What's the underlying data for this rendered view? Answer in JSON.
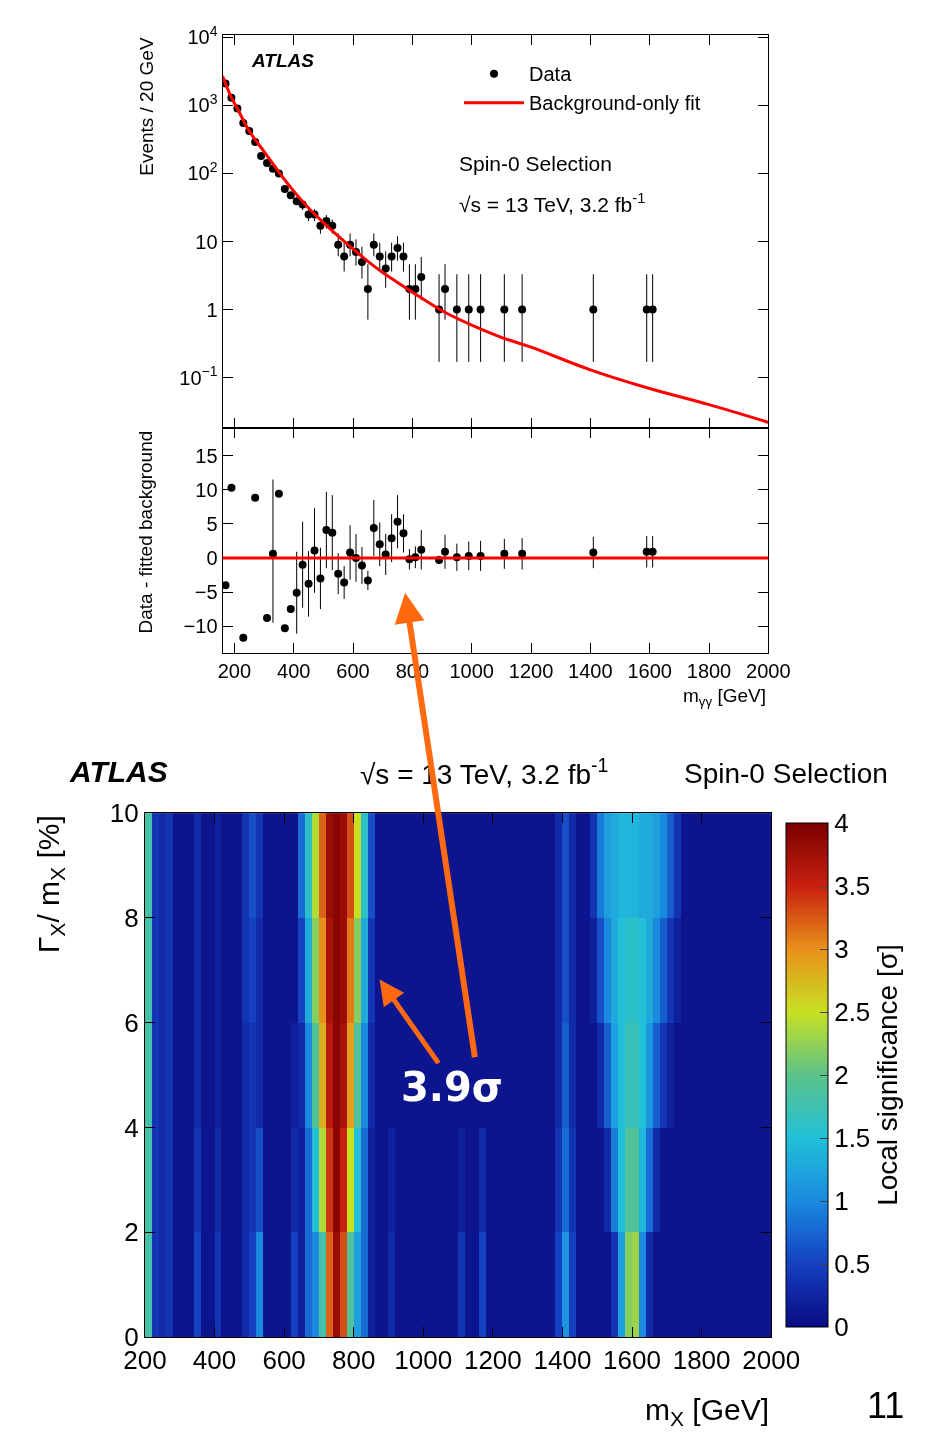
{
  "chart_data": [
    {
      "type": "scatter",
      "ylabel": "Events / 20 GeV",
      "xlim": [
        160,
        2000
      ],
      "xticks": [
        200,
        400,
        600,
        800,
        1000,
        1200,
        1400,
        1600,
        1800,
        2000
      ],
      "tick_labels": "y",
      "ylim": [
        0.018,
        11000
      ],
      "yticks": [
        {
          "value": 0.1,
          "label": "10$^{−1}$"
        },
        1,
        10,
        {
          "value": 100,
          "label": "10$^{2}$"
        },
        {
          "value": 1000,
          "label": "10$^{3}$"
        },
        {
          "value": 10000,
          "label": "10$^{4}$"
        }
      ],
      "log": "y",
      "legend": "top right",
      "x": [
        170,
        190,
        210,
        230,
        250,
        270,
        290,
        310,
        330,
        350,
        370,
        390,
        410,
        430,
        450,
        470,
        490,
        510,
        530,
        550,
        570,
        590,
        610,
        630,
        650,
        670,
        690,
        710,
        730,
        750,
        770,
        790,
        810,
        830,
        890,
        910,
        950,
        990,
        1030,
        1110,
        1170,
        1410,
        1590,
        1610
      ],
      "series": [
        {
          "name": "Data",
          "type": "scatter",
          "marker": "circle",
          "color": "#000000",
          "values": [
            2100,
            1300,
            900,
            550,
            420,
            290,
            180,
            142,
            117,
            100,
            59,
            48,
            39,
            35,
            25,
            25,
            17,
            20,
            17,
            9,
            6,
            9,
            7,
            5,
            2,
            9,
            6,
            4,
            6,
            8,
            6,
            2,
            2,
            3,
            1,
            2,
            1,
            1,
            1,
            1,
            1,
            1,
            1,
            1
          ],
          "errors": [
            null,
            null,
            null,
            null,
            null,
            null,
            null,
            null,
            null,
            null,
            null,
            null,
            null,
            6,
            5,
            5,
            4,
            4.5,
            4,
            [
              6.06,
              13.11
            ],
            [
              3.62,
              9.58
            ],
            [
              6.06,
              13.11
            ],
            [
              4.42,
              10.77
            ],
            [
              2.84,
              8.38
            ],
            [
              0.71,
              4.64
            ],
            [
              6.06,
              13.11
            ],
            [
              3.62,
              9.58
            ],
            [
              2.09,
              7.16
            ],
            [
              3.62,
              9.58
            ],
            [
              5.23,
              11.95
            ],
            [
              3.62,
              9.58
            ],
            [
              0.71,
              4.64
            ],
            [
              0.71,
              4.64
            ],
            [
              1.37,
              5.92
            ],
            [
              0.17,
              3.3
            ],
            [
              0.71,
              4.64
            ],
            [
              0.17,
              3.3
            ],
            [
              0.17,
              3.3
            ],
            [
              0.17,
              3.3
            ],
            [
              0.17,
              3.3
            ],
            [
              0.17,
              3.3
            ],
            [
              0.17,
              3.3
            ],
            [
              0.17,
              3.3
            ],
            [
              0.17,
              3.3
            ]
          ]
        },
        {
          "name": "Background-only fit",
          "type": "line",
          "color": "#ff0000",
          "line_style": "solid",
          "x": [
            160,
            190,
            210,
            250,
            300,
            350,
            400,
            450,
            500,
            550,
            600,
            650,
            700,
            750,
            800,
            900,
            1000,
            1100,
            1200,
            1400,
            1600,
            1800,
            2000
          ],
          "values": [
            2700,
            1300,
            900,
            420,
            210,
            105,
            55,
            31,
            19,
            12,
            7.8,
            5.1,
            3.5,
            2.5,
            1.8,
            0.96,
            0.59,
            0.39,
            0.28,
            0.13,
            0.069,
            0.04,
            0.022
          ]
        }
      ],
      "annotations": [
        "ATLAS",
        "Spin-0 Selection",
        "√s = 13 TeV, 3.2 fb$^{-1}$"
      ]
    },
    {
      "type": "scatter",
      "ylabel": "Data - fitted background",
      "xlabel": "m$_{γγ}$ [GeV]",
      "xlim": [
        160,
        2000
      ],
      "xticks": [
        200,
        400,
        600,
        800,
        1000,
        1200,
        1400,
        1600,
        1800,
        2000
      ],
      "ylim": [
        -14,
        19
      ],
      "yticks": [
        {
          "value": -10,
          "label": "−10"
        },
        {
          "value": -5,
          "label": "−5"
        },
        0,
        5,
        10,
        15
      ],
      "marker": "circle",
      "legend": false,
      "x": [
        170,
        190,
        230,
        270,
        310,
        330,
        350,
        370,
        390,
        410,
        430,
        450,
        470,
        490,
        510,
        530,
        550,
        570,
        590,
        610,
        630,
        650,
        670,
        690,
        710,
        730,
        750,
        770,
        790,
        810,
        830,
        890,
        910,
        950,
        990,
        1030,
        1110,
        1170,
        1410,
        1590,
        1610
      ],
      "series": [
        {
          "type": "scatter",
          "color": "#000000",
          "values": [
            -4,
            10.3,
            -11.7,
            8.8,
            -8.8,
            0.6,
            9.4,
            -10.3,
            -7.5,
            -5.1,
            -1,
            -3.8,
            1.1,
            -3,
            4.1,
            3.7,
            -2.3,
            -3.6,
            0.8,
            0,
            -1.1,
            -3.3,
            4.4,
            2,
            0.5,
            2.9,
            5.3,
            3.6,
            -0.2,
            0.1,
            1.2,
            -0.3,
            0.9,
            0.1,
            0.3,
            0.3,
            0.6,
            0.6,
            0.8,
            0.9,
            0.9
          ],
          "errors": [
            null,
            null,
            null,
            null,
            null,
            [
              -9.5,
              11.5
            ],
            null,
            null,
            null,
            6,
            6.3,
            4.8,
            6.2,
            4.5,
            5.6,
            5.5,
            3,
            2.4,
            4,
            3.5,
            2.7,
            1.4,
            4.1,
            3.2,
            3,
            3.5,
            3.9,
            2.8,
            1.5,
            1.6,
            2.9,
            0.6,
            2.5,
            2,
            2.1,
            2.2,
            2.2,
            2.3,
            2.3,
            2.3,
            2.3
          ]
        }
      ],
      "ref_lines": [
        {
          "axis": "y",
          "value": 0,
          "color": "#ff0000"
        }
      ]
    },
    {
      "type": "heatmap",
      "xlabel": "m$_{X}$ [GeV]",
      "ylabel": "Γ$_{X}$/ m$_{X}$ [%]",
      "clabel": "Local significance [σ]",
      "xlim": [
        200,
        2000
      ],
      "xticks": [
        200,
        400,
        600,
        800,
        1000,
        1200,
        1400,
        1600,
        1800,
        2000
      ],
      "ylim": [
        0,
        10
      ],
      "yticks": [
        0,
        2,
        4,
        6,
        8,
        10
      ],
      "clim": [
        0,
        4
      ],
      "cticks": [
        0,
        0.5,
        1,
        1.5,
        2,
        2.5,
        3,
        3.5,
        4
      ],
      "x": [
        210,
        230,
        250,
        270,
        290,
        310,
        330,
        350,
        370,
        390,
        410,
        430,
        450,
        470,
        490,
        510,
        530,
        550,
        570,
        590,
        610,
        630,
        650,
        670,
        690,
        710,
        730,
        750,
        770,
        790,
        810,
        830,
        850,
        870,
        890,
        910,
        930,
        950,
        970,
        990,
        1010,
        1030,
        1050,
        1070,
        1090,
        1110,
        1130,
        1150,
        1170,
        1190,
        1210,
        1230,
        1250,
        1270,
        1290,
        1310,
        1330,
        1350,
        1370,
        1390,
        1410,
        1430,
        1450,
        1470,
        1490,
        1510,
        1530,
        1550,
        1570,
        1590,
        1610,
        1630,
        1650,
        1670,
        1690,
        1710,
        1730,
        1750,
        1770,
        1790,
        1810,
        1830,
        1850,
        1870,
        1890,
        1910,
        1930,
        1950,
        1970,
        1990
      ],
      "y": [
        9,
        7,
        5,
        3,
        1
      ],
      "cells": [
        [
          1.8,
          0.4,
          0.3,
          0.4,
          0.1,
          0.1,
          0.1,
          0.3,
          0.1,
          0.1,
          0.2,
          0.1,
          0.1,
          0.1,
          0.4,
          0.6,
          0.4,
          0.1,
          0.1,
          0.1,
          0.1,
          0.1,
          0.8,
          1.6,
          2.4,
          3.2,
          3.8,
          3.9,
          3.8,
          3.3,
          2.5,
          1.6,
          0.6,
          0.1,
          0.1,
          0.1,
          0.1,
          0.1,
          0.1,
          0.1,
          0.1,
          0.1,
          0.1,
          0.1,
          0.1,
          0.1,
          0.1,
          0.1,
          0.1,
          0.1,
          0.1,
          0.1,
          0.1,
          0.1,
          0.1,
          0.1,
          0.1,
          0.1,
          0.1,
          0.3,
          0.6,
          0.3,
          0.1,
          0.1,
          0.4,
          0.9,
          1.2,
          1.3,
          1.4,
          1.4,
          1.4,
          1.3,
          1.3,
          1.2,
          1.0,
          0.7,
          0.4,
          0.1,
          0.1,
          0.1,
          0.1,
          0.1,
          0.1,
          0.1,
          0.1,
          0.1,
          0.1,
          0.1,
          0.1,
          0.1
        ],
        [
          1.8,
          0.4,
          0.3,
          0.4,
          0.1,
          0.1,
          0.1,
          0.3,
          0.1,
          0.1,
          0.2,
          0.1,
          0.1,
          0.1,
          0.4,
          0.5,
          0.3,
          0.1,
          0.1,
          0.1,
          0.1,
          0.1,
          0.5,
          1.3,
          2.2,
          3.0,
          3.7,
          3.9,
          3.8,
          3.1,
          2.2,
          1.3,
          0.4,
          0.1,
          0.1,
          0.1,
          0.1,
          0.1,
          0.1,
          0.1,
          0.1,
          0.1,
          0.1,
          0.1,
          0.1,
          0.1,
          0.1,
          0.1,
          0.1,
          0.1,
          0.1,
          0.1,
          0.1,
          0.1,
          0.1,
          0.1,
          0.1,
          0.1,
          0.1,
          0.3,
          0.6,
          0.3,
          0.1,
          0.1,
          0.2,
          0.6,
          1.0,
          1.3,
          1.5,
          1.6,
          1.6,
          1.5,
          1.3,
          1.0,
          0.7,
          0.4,
          0.2,
          0.1,
          0.1,
          0.1,
          0.1,
          0.1,
          0.1,
          0.1,
          0.1,
          0.1,
          0.1,
          0.1,
          0.1,
          0.1
        ],
        [
          1.8,
          0.4,
          0.3,
          0.4,
          0.1,
          0.1,
          0.1,
          0.3,
          0.1,
          0.1,
          0.2,
          0.1,
          0.1,
          0.1,
          0.3,
          0.4,
          0.3,
          0.1,
          0.1,
          0.1,
          0.1,
          0.2,
          0.3,
          1.0,
          1.9,
          2.8,
          3.6,
          3.9,
          3.7,
          2.9,
          1.9,
          1.0,
          0.3,
          0.1,
          0.1,
          0.1,
          0.1,
          0.1,
          0.1,
          0.1,
          0.1,
          0.1,
          0.1,
          0.1,
          0.1,
          0.1,
          0.1,
          0.1,
          0.1,
          0.1,
          0.1,
          0.1,
          0.1,
          0.1,
          0.1,
          0.1,
          0.1,
          0.1,
          0.1,
          0.3,
          0.7,
          0.3,
          0.1,
          0.1,
          0.1,
          0.3,
          0.7,
          1.2,
          1.5,
          1.7,
          1.7,
          1.5,
          1.1,
          0.7,
          0.4,
          0.2,
          0.1,
          0.1,
          0.1,
          0.1,
          0.1,
          0.1,
          0.1,
          0.1,
          0.1,
          0.1,
          0.1,
          0.1,
          0.1,
          0.1
        ],
        [
          1.8,
          0.4,
          0.3,
          0.4,
          0.1,
          0.1,
          0.1,
          0.4,
          0.1,
          0.1,
          0.3,
          0.1,
          0.1,
          0.1,
          0.3,
          0.4,
          0.6,
          0.1,
          0.1,
          0.1,
          0.1,
          0.3,
          0.2,
          0.8,
          1.5,
          2.4,
          3.4,
          3.9,
          3.5,
          2.5,
          1.5,
          0.8,
          0.2,
          0.1,
          0.1,
          0.2,
          0.1,
          0.1,
          0.1,
          0.1,
          0.1,
          0.1,
          0.1,
          0.1,
          0.1,
          0.2,
          0.1,
          0.1,
          0.3,
          0.1,
          0.1,
          0.1,
          0.1,
          0.1,
          0.1,
          0.1,
          0.1,
          0.1,
          0.1,
          0.4,
          0.8,
          0.4,
          0.1,
          0.1,
          0.1,
          0.1,
          0.3,
          0.9,
          1.5,
          1.9,
          1.9,
          1.4,
          0.8,
          0.3,
          0.1,
          0.1,
          0.1,
          0.1,
          0.1,
          0.1,
          0.1,
          0.1,
          0.1,
          0.1,
          0.1,
          0.1,
          0.1,
          0.1,
          0.1,
          0.1
        ],
        [
          1.8,
          0.4,
          0.3,
          0.4,
          0.1,
          0.1,
          0.1,
          0.5,
          0.1,
          0.1,
          0.4,
          0.1,
          0.1,
          0.1,
          0.3,
          0.5,
          1.0,
          0.1,
          0.1,
          0.1,
          0.1,
          0.5,
          0.2,
          0.8,
          1.0,
          1.8,
          3.2,
          3.8,
          3.3,
          1.9,
          1.2,
          0.8,
          0.2,
          0.1,
          0.1,
          0.3,
          0.1,
          0.1,
          0.1,
          0.1,
          0.1,
          0.1,
          0.1,
          0.1,
          0.1,
          0.4,
          0.1,
          0.1,
          0.5,
          0.1,
          0.1,
          0.1,
          0.1,
          0.1,
          0.1,
          0.1,
          0.1,
          0.1,
          0.1,
          0.5,
          1.1,
          0.5,
          0.1,
          0.1,
          0.1,
          0.1,
          0.1,
          0.4,
          1.2,
          2.2,
          2.3,
          1.0,
          0.3,
          0.1,
          0.1,
          0.1,
          0.1,
          0.1,
          0.1,
          0.1,
          0.1,
          0.1,
          0.1,
          0.1,
          0.1,
          0.1,
          0.1,
          0.1,
          0.1,
          0.1
        ]
      ],
      "annotations": [
        "ATLAS",
        "√s = 13 TeV, 3.2 fb$^{-1}$",
        "Spin-0 Selection",
        "3.9σ",
        "11"
      ]
    }
  ]
}
